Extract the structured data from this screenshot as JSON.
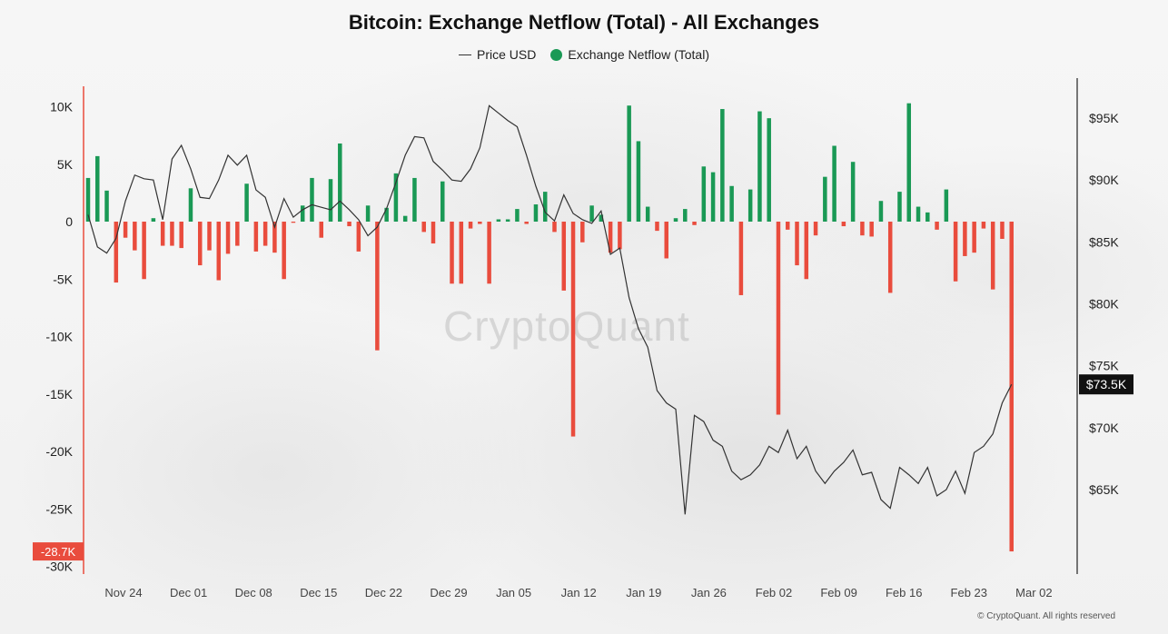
{
  "title": "Bitcoin: Exchange Netflow (Total) - All Exchanges",
  "legend": {
    "price_label": "Price USD",
    "netflow_label": "Exchange Netflow (Total)"
  },
  "colors": {
    "positive": "#1a9955",
    "negative": "#e94c3d",
    "price_line": "#333333"
  },
  "watermark": "CryptoQuant",
  "copyright": "© CryptoQuant. All rights reserved",
  "chart_data": {
    "type": "bar",
    "title": "Bitcoin: Exchange Netflow (Total) - All Exchanges",
    "x_ticks": [
      "Nov 24",
      "Dec 01",
      "Dec 08",
      "Dec 15",
      "Dec 22",
      "Dec 29",
      "Jan 05",
      "Jan 12",
      "Jan 19",
      "Jan 26",
      "Feb 02",
      "Feb 09",
      "Feb 16",
      "Feb 23",
      "Mar 02"
    ],
    "y_left": {
      "ticks": [
        "10K",
        "5K",
        "0",
        "-5K",
        "-10K",
        "-15K",
        "-20K",
        "-25K",
        "-30K"
      ],
      "range": [
        -30000,
        10000
      ],
      "current_label": "-28.7K"
    },
    "y_right": {
      "ticks": [
        "$95K",
        "$90K",
        "$85K",
        "$80K",
        "$75K",
        "$70K",
        "$65K"
      ],
      "range": [
        62000,
        97000
      ],
      "current_label": "$73.5K"
    },
    "legend_position": "top-center",
    "grid": false,
    "series": [
      {
        "name": "Exchange Netflow (Total)",
        "type": "bar",
        "values": [
          3800,
          5700,
          2700,
          -5300,
          -1400,
          -2500,
          -5000,
          300,
          -2100,
          -2100,
          -2300,
          2900,
          -3800,
          -2500,
          -5100,
          -2800,
          -2100,
          3300,
          -2600,
          -2100,
          -2700,
          -5000,
          -100,
          1400,
          3800,
          -1400,
          3700,
          6800,
          -400,
          -2600,
          1400,
          -11200,
          1200,
          4200,
          500,
          3800,
          -900,
          -1900,
          3500,
          -5400,
          -5400,
          -600,
          -200,
          -5400,
          200,
          200,
          1100,
          -200,
          1500,
          2600,
          -900,
          -6000,
          -18700,
          -1800,
          1400,
          600,
          -2700,
          -2400,
          10100,
          7000,
          1300,
          -800,
          -3200,
          300,
          1100,
          -300,
          4800,
          4300,
          9800,
          3100,
          -6400,
          2800,
          9600,
          9000,
          -16800,
          -700,
          -3800,
          -5000,
          -1200,
          3900,
          6600,
          -400,
          5200,
          -1200,
          -1300,
          1800,
          -6200,
          2600,
          10300,
          1300,
          800,
          -700,
          2800,
          -5200,
          -3000,
          -2700,
          -600,
          -5900,
          -1500,
          -28700
        ]
      },
      {
        "name": "Price USD",
        "type": "line",
        "values": [
          87200,
          84600,
          84100,
          85300,
          88300,
          90400,
          90100,
          90000,
          86800,
          91700,
          92800,
          90900,
          88600,
          88500,
          90000,
          92000,
          91200,
          92000,
          89200,
          88600,
          86200,
          88500,
          87000,
          87600,
          88000,
          87800,
          87600,
          88300,
          87600,
          86800,
          85500,
          86200,
          87700,
          89800,
          92000,
          93500,
          93400,
          91500,
          90800,
          90000,
          89900,
          90900,
          92600,
          96000,
          95400,
          94800,
          94300,
          92000,
          89500,
          87400,
          86700,
          88800,
          87300,
          86800,
          86500,
          87500,
          84000,
          84500,
          80500,
          78000,
          76500,
          73000,
          72000,
          71500,
          63000,
          71000,
          70500,
          69000,
          68500,
          66500,
          65800,
          66200,
          67000,
          68500,
          68000,
          69800,
          67500,
          68500,
          66500,
          65500,
          66500,
          67200,
          68200,
          66200,
          66400,
          64200,
          63500,
          66800,
          66200,
          65500,
          66800,
          64500,
          65000,
          66500,
          64700,
          68000,
          68500,
          69500,
          72000,
          73500
        ]
      }
    ]
  }
}
